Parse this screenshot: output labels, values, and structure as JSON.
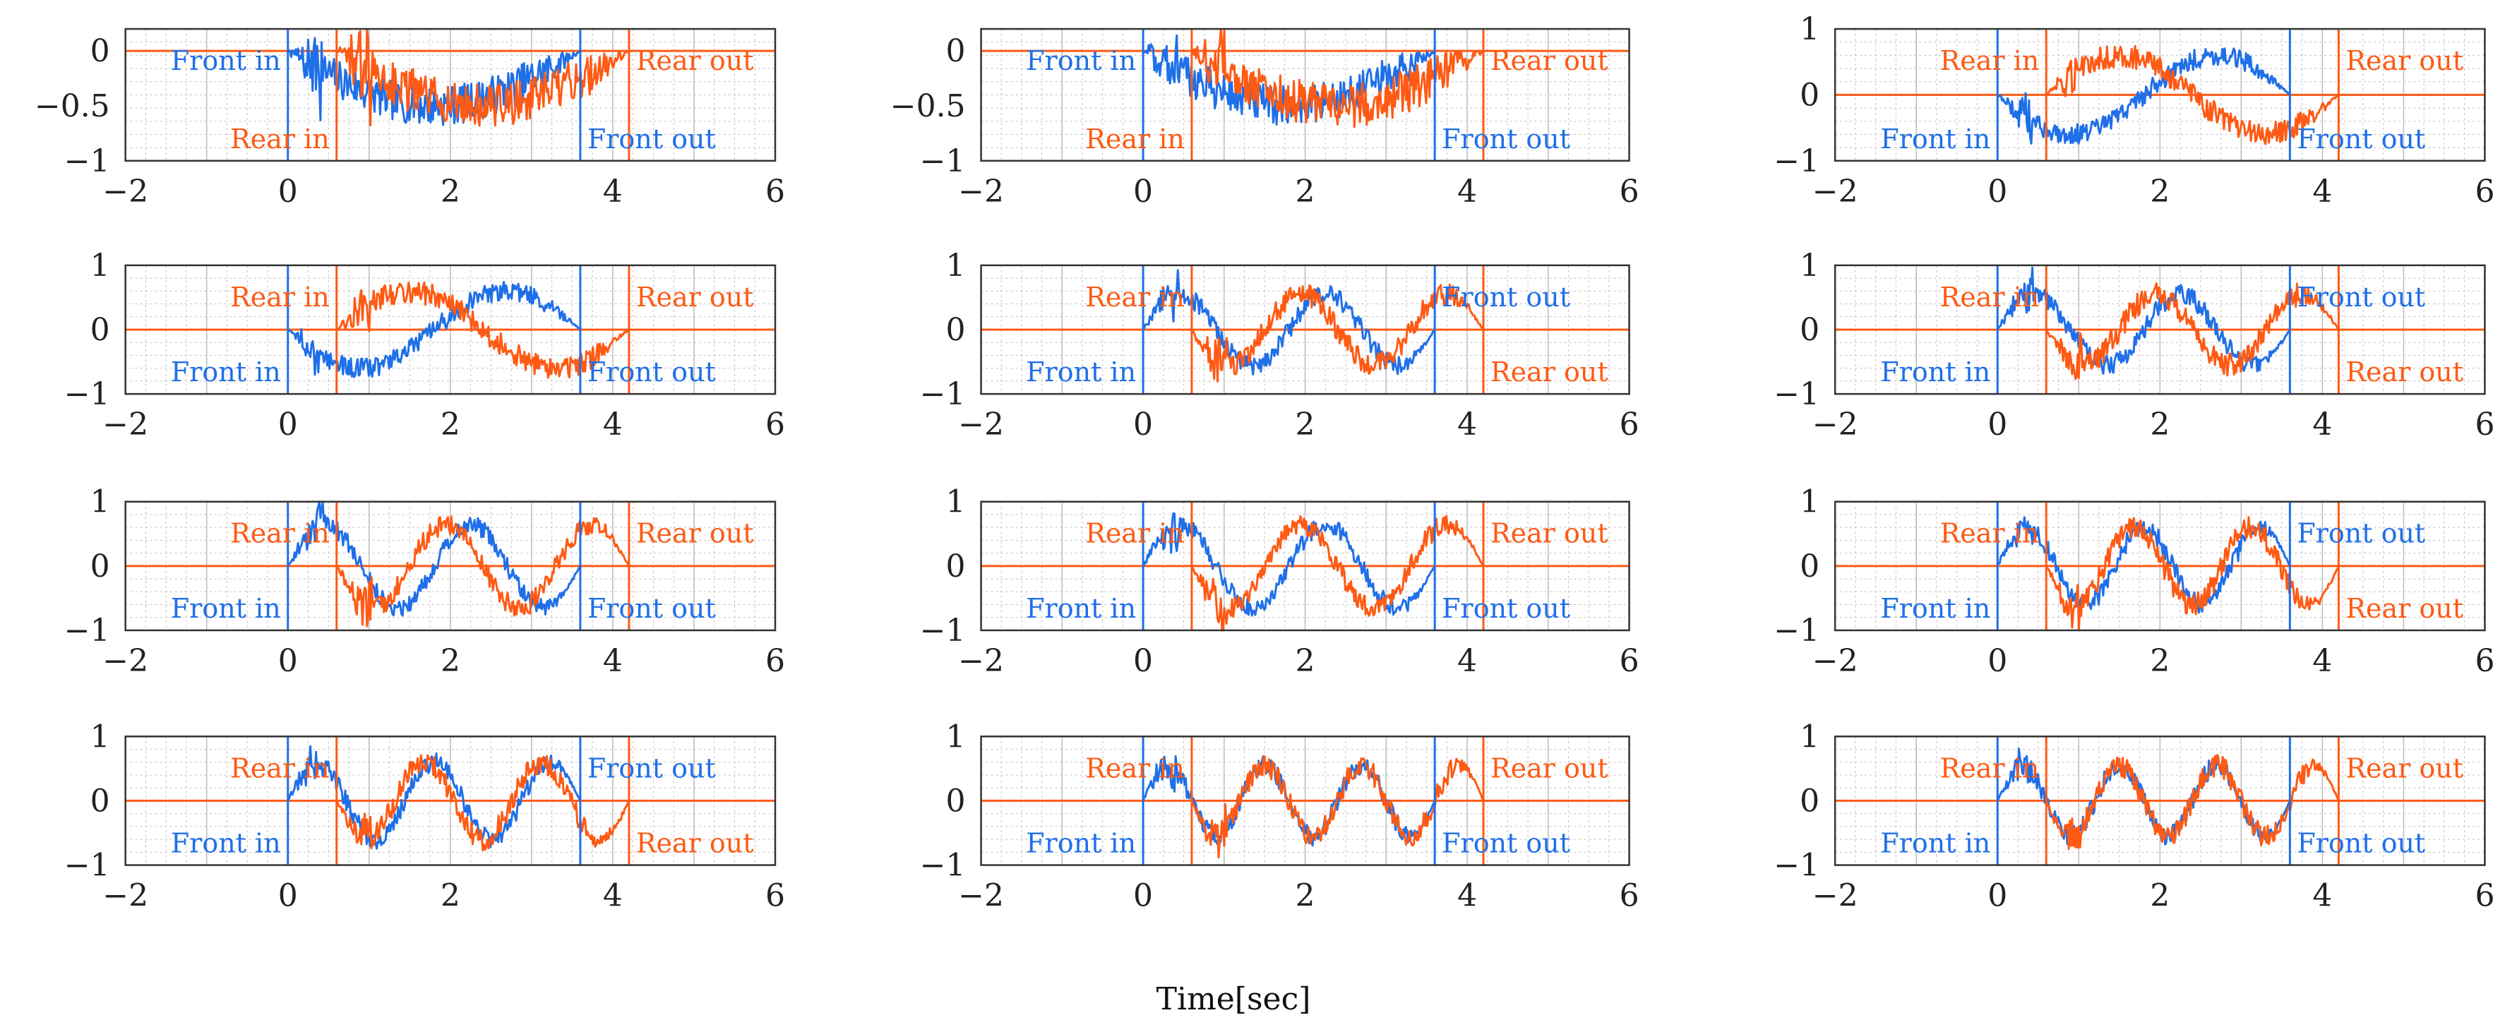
{
  "figure": {
    "xlabel": "Time[sec]",
    "front_color": "#1f6fe8",
    "rear_color": "#ff5a14",
    "axes_color": "#333333",
    "grid_color": "#bfbfbf",
    "line_labels": {
      "front": "Front",
      "rear": "Rear",
      "in": "in",
      "out": "out"
    }
  },
  "chart_data": [
    {
      "type": "line",
      "panel": 1,
      "xlim": [
        -2,
        6
      ],
      "ylim": [
        -1,
        0.2
      ],
      "xticks": [
        "−2",
        "0",
        "2",
        "4",
        "6"
      ],
      "yticks": [
        "0",
        "−0.5",
        "−1"
      ],
      "ytick_values": [
        0,
        -0.5,
        -1
      ],
      "series": [
        {
          "name": "Front",
          "x_start": 0,
          "x_end": 3.6,
          "shape": "bowl",
          "depth": -0.5,
          "noise": 0.18
        },
        {
          "name": "Rear",
          "x_start": 0.6,
          "x_end": 4.2,
          "shape": "bowl",
          "depth": -0.5,
          "noise": 0.2
        }
      ],
      "events": [
        {
          "series": "Front",
          "x": 0,
          "label": "Front in",
          "pos": "upper-left"
        },
        {
          "series": "Rear",
          "x": 0.6,
          "label": "Rear in",
          "pos": "lower-left"
        },
        {
          "series": "Front",
          "x": 3.6,
          "label": "Front out",
          "pos": "lower-right"
        },
        {
          "series": "Rear",
          "x": 4.2,
          "label": "Rear out",
          "pos": "upper-right"
        }
      ]
    },
    {
      "type": "line",
      "panel": 2,
      "xlim": [
        -2,
        6
      ],
      "ylim": [
        -1,
        0.2
      ],
      "xticks": [
        "−2",
        "0",
        "2",
        "4",
        "6"
      ],
      "yticks": [
        "0",
        "−0.5",
        "−1"
      ],
      "ytick_values": [
        0,
        -0.5,
        -1
      ],
      "series": [
        {
          "name": "Front",
          "x_start": 0,
          "x_end": 3.6,
          "shape": "bowl",
          "depth": -0.5,
          "noise": 0.18
        },
        {
          "name": "Rear",
          "x_start": 0.6,
          "x_end": 4.2,
          "shape": "bowl",
          "depth": -0.5,
          "noise": 0.2
        }
      ],
      "events": [
        {
          "series": "Front",
          "x": 0,
          "label": "Front in",
          "pos": "upper-left"
        },
        {
          "series": "Rear",
          "x": 0.6,
          "label": "Rear in",
          "pos": "lower-left"
        },
        {
          "series": "Front",
          "x": 3.6,
          "label": "Front out",
          "pos": "lower-right"
        },
        {
          "series": "Rear",
          "x": 4.2,
          "label": "Rear out",
          "pos": "upper-right"
        }
      ]
    },
    {
      "type": "line",
      "panel": 3,
      "xlim": [
        -2,
        6
      ],
      "ylim": [
        -1,
        1
      ],
      "xticks": [
        "−2",
        "0",
        "2",
        "4",
        "6"
      ],
      "yticks": [
        "1",
        "0",
        "−1"
      ],
      "ytick_values": [
        1,
        0,
        -1
      ],
      "series": [
        {
          "name": "Front",
          "x_start": 0,
          "x_end": 3.6,
          "shape": "sine",
          "cycles": 1,
          "amp": 0.6,
          "noise": 0.15
        },
        {
          "name": "Rear",
          "x_start": 0.6,
          "x_end": 4.2,
          "shape": "sine",
          "cycles": 1,
          "amp": 0.6,
          "noise": 0.18
        }
      ],
      "events": [
        {
          "series": "Front",
          "x": 0,
          "label": "Front in",
          "pos": "lower-left"
        },
        {
          "series": "Rear",
          "x": 0.6,
          "label": "Rear in",
          "pos": "upper-left"
        },
        {
          "series": "Front",
          "x": 3.6,
          "label": "Front out",
          "pos": "lower-right"
        },
        {
          "series": "Rear",
          "x": 4.2,
          "label": "Rear out",
          "pos": "upper-right"
        }
      ]
    },
    {
      "type": "line",
      "panel": 4,
      "xlim": [
        -2,
        6
      ],
      "ylim": [
        -1,
        1
      ],
      "xticks": [
        "−2",
        "0",
        "2",
        "4",
        "6"
      ],
      "yticks": [
        "1",
        "0",
        "−1"
      ],
      "ytick_values": [
        1,
        0,
        -1
      ],
      "series": [
        {
          "name": "Front",
          "x_start": 0,
          "x_end": 3.6,
          "shape": "sine",
          "cycles": 1,
          "amp": 0.6,
          "noise": 0.15
        },
        {
          "name": "Rear",
          "x_start": 0.6,
          "x_end": 4.2,
          "shape": "sine",
          "cycles": 1,
          "amp": 0.6,
          "noise": 0.18
        }
      ],
      "events": [
        {
          "series": "Front",
          "x": 0,
          "label": "Front in",
          "pos": "lower-left"
        },
        {
          "series": "Rear",
          "x": 0.6,
          "label": "Rear in",
          "pos": "upper-left"
        },
        {
          "series": "Front",
          "x": 3.6,
          "label": "Front out",
          "pos": "lower-right"
        },
        {
          "series": "Rear",
          "x": 4.2,
          "label": "Rear out",
          "pos": "upper-right"
        }
      ]
    },
    {
      "type": "line",
      "panel": 5,
      "xlim": [
        -2,
        6
      ],
      "ylim": [
        -1,
        1
      ],
      "xticks": [
        "−2",
        "0",
        "2",
        "4",
        "6"
      ],
      "yticks": [
        "1",
        "0",
        "−1"
      ],
      "ytick_values": [
        1,
        0,
        -1
      ],
      "series": [
        {
          "name": "Front",
          "x_start": 0,
          "x_end": 3.6,
          "shape": "sine",
          "cycles": 2,
          "amp": 0.55,
          "noise": 0.15
        },
        {
          "name": "Rear",
          "x_start": 0.6,
          "x_end": 4.2,
          "shape": "sine",
          "cycles": 2,
          "amp": 0.55,
          "noise": 0.18
        }
      ],
      "events": [
        {
          "series": "Front",
          "x": 0,
          "label": "Front in",
          "pos": "lower-left"
        },
        {
          "series": "Rear",
          "x": 0.6,
          "label": "Rear in",
          "pos": "upper-left"
        },
        {
          "series": "Front",
          "x": 3.6,
          "label": "Front out",
          "pos": "upper-right"
        },
        {
          "series": "Rear",
          "x": 4.2,
          "label": "Rear out",
          "pos": "lower-right"
        }
      ]
    },
    {
      "type": "line",
      "panel": 6,
      "xlim": [
        -2,
        6
      ],
      "ylim": [
        -1,
        1
      ],
      "xticks": [
        "−2",
        "0",
        "2",
        "4",
        "6"
      ],
      "yticks": [
        "1",
        "0",
        "−1"
      ],
      "ytick_values": [
        1,
        0,
        -1
      ],
      "series": [
        {
          "name": "Front",
          "x_start": 0,
          "x_end": 3.6,
          "shape": "sine",
          "cycles": 2,
          "amp": 0.55,
          "noise": 0.15
        },
        {
          "name": "Rear",
          "x_start": 0.6,
          "x_end": 4.2,
          "shape": "sine",
          "cycles": 2,
          "amp": 0.55,
          "noise": 0.18
        }
      ],
      "events": [
        {
          "series": "Front",
          "x": 0,
          "label": "Front in",
          "pos": "lower-left"
        },
        {
          "series": "Rear",
          "x": 0.6,
          "label": "Rear in",
          "pos": "upper-left"
        },
        {
          "series": "Front",
          "x": 3.6,
          "label": "Front out",
          "pos": "upper-right"
        },
        {
          "series": "Rear",
          "x": 4.2,
          "label": "Rear out",
          "pos": "lower-right"
        }
      ]
    },
    {
      "type": "line",
      "panel": 7,
      "xlim": [
        -2,
        6
      ],
      "ylim": [
        -1,
        1
      ],
      "xticks": [
        "−2",
        "0",
        "2",
        "4",
        "6"
      ],
      "yticks": [
        "1",
        "0",
        "−1"
      ],
      "ytick_values": [
        1,
        0,
        -1
      ],
      "series": [
        {
          "name": "Front",
          "x_start": 0,
          "x_end": 3.6,
          "shape": "sine",
          "cycles": 2,
          "amp": 0.65,
          "noise": 0.14
        },
        {
          "name": "Rear",
          "x_start": 0.6,
          "x_end": 4.2,
          "shape": "sine",
          "cycles": 2,
          "amp": 0.65,
          "noise": 0.16
        }
      ],
      "events": [
        {
          "series": "Front",
          "x": 0,
          "label": "Front in",
          "pos": "lower-left"
        },
        {
          "series": "Rear",
          "x": 0.6,
          "label": "Rear in",
          "pos": "upper-left"
        },
        {
          "series": "Front",
          "x": 3.6,
          "label": "Front out",
          "pos": "lower-right"
        },
        {
          "series": "Rear",
          "x": 4.2,
          "label": "Rear out",
          "pos": "upper-right"
        }
      ]
    },
    {
      "type": "line",
      "panel": 8,
      "xlim": [
        -2,
        6
      ],
      "ylim": [
        -1,
        1
      ],
      "xticks": [
        "−2",
        "0",
        "2",
        "4",
        "6"
      ],
      "yticks": [
        "1",
        "0",
        "−1"
      ],
      "ytick_values": [
        1,
        0,
        -1
      ],
      "series": [
        {
          "name": "Front",
          "x_start": 0,
          "x_end": 3.6,
          "shape": "sine",
          "cycles": 2,
          "amp": 0.65,
          "noise": 0.14
        },
        {
          "name": "Rear",
          "x_start": 0.6,
          "x_end": 4.2,
          "shape": "sine",
          "cycles": 2,
          "amp": 0.65,
          "noise": 0.16
        }
      ],
      "events": [
        {
          "series": "Front",
          "x": 0,
          "label": "Front in",
          "pos": "lower-left"
        },
        {
          "series": "Rear",
          "x": 0.6,
          "label": "Rear in",
          "pos": "upper-left"
        },
        {
          "series": "Front",
          "x": 3.6,
          "label": "Front out",
          "pos": "lower-right"
        },
        {
          "series": "Rear",
          "x": 4.2,
          "label": "Rear out",
          "pos": "upper-right"
        }
      ]
    },
    {
      "type": "line",
      "panel": 9,
      "xlim": [
        -2,
        6
      ],
      "ylim": [
        -1,
        1
      ],
      "xticks": [
        "−2",
        "0",
        "2",
        "4",
        "6"
      ],
      "yticks": [
        "1",
        "0",
        "−1"
      ],
      "ytick_values": [
        1,
        0,
        -1
      ],
      "series": [
        {
          "name": "Front",
          "x_start": 0,
          "x_end": 3.6,
          "shape": "sine",
          "cycles": 2.5,
          "amp": 0.6,
          "noise": 0.15
        },
        {
          "name": "Rear",
          "x_start": 0.6,
          "x_end": 4.2,
          "shape": "sine",
          "cycles": 2.5,
          "amp": 0.6,
          "noise": 0.17
        }
      ],
      "events": [
        {
          "series": "Front",
          "x": 0,
          "label": "Front in",
          "pos": "lower-left"
        },
        {
          "series": "Rear",
          "x": 0.6,
          "label": "Rear in",
          "pos": "upper-left"
        },
        {
          "series": "Front",
          "x": 3.6,
          "label": "Front out",
          "pos": "upper-right"
        },
        {
          "series": "Rear",
          "x": 4.2,
          "label": "Rear out",
          "pos": "lower-right"
        }
      ]
    },
    {
      "type": "line",
      "panel": 10,
      "xlim": [
        -2,
        6
      ],
      "ylim": [
        -1,
        1
      ],
      "xticks": [
        "−2",
        "0",
        "2",
        "4",
        "6"
      ],
      "yticks": [
        "1",
        "0",
        "−1"
      ],
      "ytick_values": [
        1,
        0,
        -1
      ],
      "series": [
        {
          "name": "Front",
          "x_start": 0,
          "x_end": 3.6,
          "shape": "sine",
          "cycles": 2.5,
          "amp": 0.6,
          "noise": 0.15
        },
        {
          "name": "Rear",
          "x_start": 0.6,
          "x_end": 4.2,
          "shape": "sine",
          "cycles": 2.5,
          "amp": 0.6,
          "noise": 0.17
        }
      ],
      "events": [
        {
          "series": "Front",
          "x": 0,
          "label": "Front in",
          "pos": "lower-left"
        },
        {
          "series": "Rear",
          "x": 0.6,
          "label": "Rear in",
          "pos": "upper-left"
        },
        {
          "series": "Front",
          "x": 3.6,
          "label": "Front out",
          "pos": "upper-right"
        },
        {
          "series": "Rear",
          "x": 4.2,
          "label": "Rear out",
          "pos": "lower-right"
        }
      ]
    },
    {
      "type": "line",
      "panel": 11,
      "xlim": [
        -2,
        6
      ],
      "ylim": [
        -1,
        1
      ],
      "xticks": [
        "−2",
        "0",
        "2",
        "4",
        "6"
      ],
      "yticks": [
        "1",
        "0",
        "−1"
      ],
      "ytick_values": [
        1,
        0,
        -1
      ],
      "series": [
        {
          "name": "Front",
          "x_start": 0,
          "x_end": 3.6,
          "shape": "sine",
          "cycles": 3,
          "amp": 0.55,
          "noise": 0.15
        },
        {
          "name": "Rear",
          "x_start": 0.6,
          "x_end": 4.2,
          "shape": "sine",
          "cycles": 3,
          "amp": 0.55,
          "noise": 0.17
        }
      ],
      "events": [
        {
          "series": "Front",
          "x": 0,
          "label": "Front in",
          "pos": "lower-left"
        },
        {
          "series": "Rear",
          "x": 0.6,
          "label": "Rear in",
          "pos": "upper-left"
        },
        {
          "series": "Front",
          "x": 3.6,
          "label": "Front out",
          "pos": "lower-right"
        },
        {
          "series": "Rear",
          "x": 4.2,
          "label": "Rear out",
          "pos": "upper-right"
        }
      ]
    },
    {
      "type": "line",
      "panel": 12,
      "xlim": [
        -2,
        6
      ],
      "ylim": [
        -1,
        1
      ],
      "xticks": [
        "−2",
        "0",
        "2",
        "4",
        "6"
      ],
      "yticks": [
        "1",
        "0",
        "−1"
      ],
      "ytick_values": [
        1,
        0,
        -1
      ],
      "series": [
        {
          "name": "Front",
          "x_start": 0,
          "x_end": 3.6,
          "shape": "sine",
          "cycles": 3,
          "amp": 0.55,
          "noise": 0.15
        },
        {
          "name": "Rear",
          "x_start": 0.6,
          "x_end": 4.2,
          "shape": "sine",
          "cycles": 3,
          "amp": 0.55,
          "noise": 0.17
        }
      ],
      "events": [
        {
          "series": "Front",
          "x": 0,
          "label": "Front in",
          "pos": "lower-left"
        },
        {
          "series": "Rear",
          "x": 0.6,
          "label": "Rear in",
          "pos": "upper-left"
        },
        {
          "series": "Front",
          "x": 3.6,
          "label": "Front out",
          "pos": "lower-right"
        },
        {
          "series": "Rear",
          "x": 4.2,
          "label": "Rear out",
          "pos": "upper-right"
        }
      ]
    }
  ]
}
